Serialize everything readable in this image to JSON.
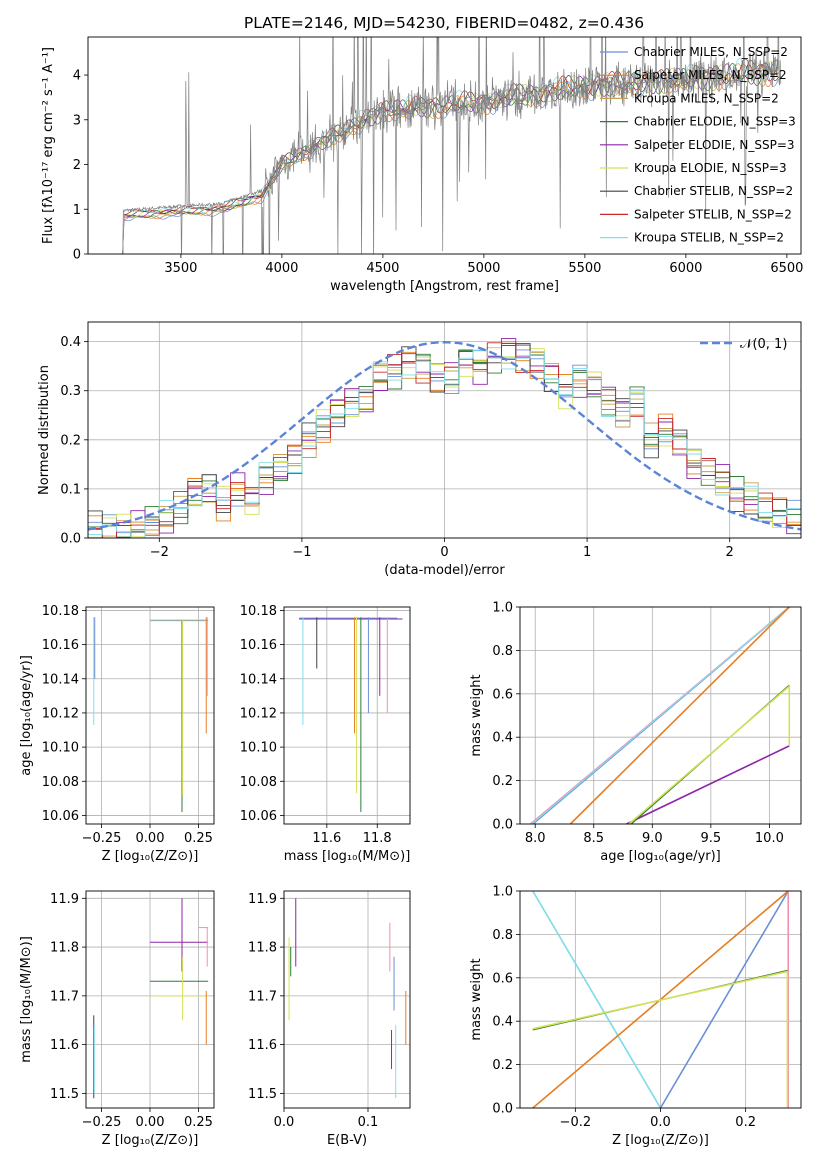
{
  "figure": {
    "title": "PLATE=2146, MJD=54230, FIBERID=0482, z=0.436"
  },
  "chart_data": [
    {
      "panel": "spectrum",
      "type": "line",
      "xlabel": "wavelength [Angstrom, rest frame]",
      "ylabel": "Flux [fλ10⁻¹⁷ erg cm⁻² s⁻¹ A⁻¹]",
      "xlim": [
        3040,
        6570
      ],
      "ylim": [
        0,
        4.85
      ],
      "xticks": [
        3500,
        4000,
        4500,
        5000,
        5500,
        6000,
        6500
      ],
      "yticks": [
        0,
        1,
        2,
        3,
        4
      ],
      "grid": false,
      "legend": "top-right",
      "data_spectrum": {
        "color": "#808080",
        "wavelength_range": [
          3200,
          6470
        ],
        "level_points": [
          [
            3220,
            0.85
          ],
          [
            3500,
            0.95
          ],
          [
            3700,
            1.0
          ],
          [
            3900,
            1.3
          ],
          [
            4000,
            2.0
          ],
          [
            4200,
            2.5
          ],
          [
            4500,
            3.2
          ],
          [
            5000,
            3.4
          ],
          [
            5500,
            3.75
          ],
          [
            6000,
            3.9
          ],
          [
            6450,
            4.1
          ]
        ]
      },
      "series": [
        {
          "name": "Chabrier MILES, N_SSP=2",
          "color": "#6b8fd6"
        },
        {
          "name": "Salpeter MILES, N_SSP=2",
          "color": "#e67e22"
        },
        {
          "name": "Kroupa MILES, N_SSP=2",
          "color": "#c8a050"
        },
        {
          "name": "Chabrier ELODIE, N_SSP=3",
          "color": "#2e7d32"
        },
        {
          "name": "Salpeter ELODIE, N_SSP=3",
          "color": "#8e24aa"
        },
        {
          "name": "Kroupa ELODIE, N_SSP=3",
          "color": "#d4e157"
        },
        {
          "name": "Chabrier STELIB, N_SSP=2",
          "color": "#424242"
        },
        {
          "name": "Salpeter STELIB, N_SSP=2",
          "color": "#c62828"
        },
        {
          "name": "Kroupa STELIB, N_SSP=2",
          "color": "#80deea"
        }
      ]
    },
    {
      "panel": "residual-histogram",
      "type": "line",
      "xlabel": "(data-model)/error",
      "ylabel": "Normed distribution",
      "xlim": [
        -2.5,
        2.5
      ],
      "ylim": [
        0,
        0.44
      ],
      "xticks": [
        -2,
        -1,
        0,
        1,
        2
      ],
      "yticks": [
        0.0,
        0.1,
        0.2,
        0.3,
        0.4
      ],
      "grid": true,
      "legend": "top-right",
      "legend_label": "𝒩(0, 1)",
      "bin_width": 0.1,
      "histogram_centers": [
        -2.45,
        -2.35,
        -2.25,
        -2.15,
        -2.05,
        -1.95,
        -1.85,
        -1.75,
        -1.65,
        -1.55,
        -1.45,
        -1.35,
        -1.25,
        -1.15,
        -1.05,
        -0.95,
        -0.85,
        -0.75,
        -0.65,
        -0.55,
        -0.45,
        -0.35,
        -0.25,
        -0.15,
        -0.05,
        0.05,
        0.15,
        0.25,
        0.35,
        0.45,
        0.55,
        0.65,
        0.75,
        0.85,
        0.95,
        1.05,
        1.15,
        1.25,
        1.35,
        1.45,
        1.55,
        1.65,
        1.75,
        1.85,
        1.95,
        2.05,
        2.15,
        2.25,
        2.35,
        2.45
      ],
      "histogram_typical": [
        0.02,
        0.015,
        0.02,
        0.02,
        0.03,
        0.04,
        0.06,
        0.09,
        0.1,
        0.07,
        0.1,
        0.08,
        0.12,
        0.14,
        0.16,
        0.2,
        0.23,
        0.26,
        0.28,
        0.28,
        0.33,
        0.34,
        0.36,
        0.35,
        0.33,
        0.33,
        0.36,
        0.35,
        0.37,
        0.38,
        0.37,
        0.36,
        0.33,
        0.3,
        0.32,
        0.31,
        0.28,
        0.26,
        0.28,
        0.2,
        0.22,
        0.19,
        0.15,
        0.14,
        0.12,
        0.09,
        0.08,
        0.06,
        0.05,
        0.04
      ]
    },
    {
      "panel": "age-vs-Z",
      "type": "scatter",
      "xlabel": "Z [log₁₀(Z/Z⊙)]",
      "ylabel": "age  [log₁₀(age/yr)]",
      "xlim": [
        -0.33,
        0.33
      ],
      "ylim": [
        10.055,
        10.182
      ],
      "xticks": [
        -0.25,
        0.0,
        0.25
      ],
      "xtick_labels": [
        "−0.25",
        "0.00",
        "0.25"
      ],
      "yticks": [
        10.06,
        10.08,
        10.1,
        10.12,
        10.14,
        10.16,
        10.18
      ],
      "grid": true
    },
    {
      "panel": "age-vs-mass",
      "type": "scatter",
      "xlabel": "mass [log₁₀(M/M⊙)]",
      "ylabel": "",
      "xlim": [
        11.43,
        11.93
      ],
      "ylim": [
        10.055,
        10.182
      ],
      "xticks": [
        11.6,
        11.8
      ],
      "yticks": [
        10.06,
        10.08,
        10.1,
        10.12,
        10.14,
        10.16,
        10.18
      ],
      "grid": true
    },
    {
      "panel": "mass-weight-vs-age",
      "type": "line",
      "xlabel": "age  [log₁₀(age/yr)]",
      "ylabel": "mass weight",
      "xlim": [
        7.87,
        10.27
      ],
      "ylim": [
        0,
        1
      ],
      "xticks": [
        8.0,
        8.5,
        9.0,
        9.5,
        10.0
      ],
      "yticks": [
        0.0,
        0.2,
        0.4,
        0.6,
        0.8,
        1.0
      ],
      "grid": true
    },
    {
      "panel": "mass-vs-Z",
      "type": "scatter",
      "xlabel": "Z [log₁₀(Z/Z⊙)]",
      "ylabel": "mass [log₁₀(M/M⊙)]",
      "xlim": [
        -0.33,
        0.33
      ],
      "ylim": [
        11.47,
        11.915
      ],
      "xticks": [
        -0.25,
        0.0,
        0.25
      ],
      "xtick_labels": [
        "−0.25",
        "0.00",
        "0.25"
      ],
      "yticks": [
        11.5,
        11.6,
        11.7,
        11.8,
        11.9
      ],
      "grid": true
    },
    {
      "panel": "mass-vs-EBV",
      "type": "scatter",
      "xlabel": "E(B-V)",
      "ylabel": "",
      "xlim": [
        0,
        0.15
      ],
      "ylim": [
        11.47,
        11.915
      ],
      "xticks": [
        0.0,
        0.1
      ],
      "yticks": [
        11.5,
        11.6,
        11.7,
        11.8,
        11.9
      ],
      "grid": true
    },
    {
      "panel": "mass-weight-vs-Z",
      "type": "line",
      "xlabel": "Z [log₁₀(Z/Z⊙)]",
      "ylabel": "mass weight",
      "xlim": [
        -0.33,
        0.33
      ],
      "ylim": [
        0,
        1
      ],
      "xticks": [
        -0.2,
        0.0,
        0.2
      ],
      "xtick_labels": [
        "−0.2",
        "0.0",
        "0.2"
      ],
      "yticks": [
        0.0,
        0.2,
        0.4,
        0.6,
        0.8,
        1.0
      ],
      "grid": true
    }
  ]
}
